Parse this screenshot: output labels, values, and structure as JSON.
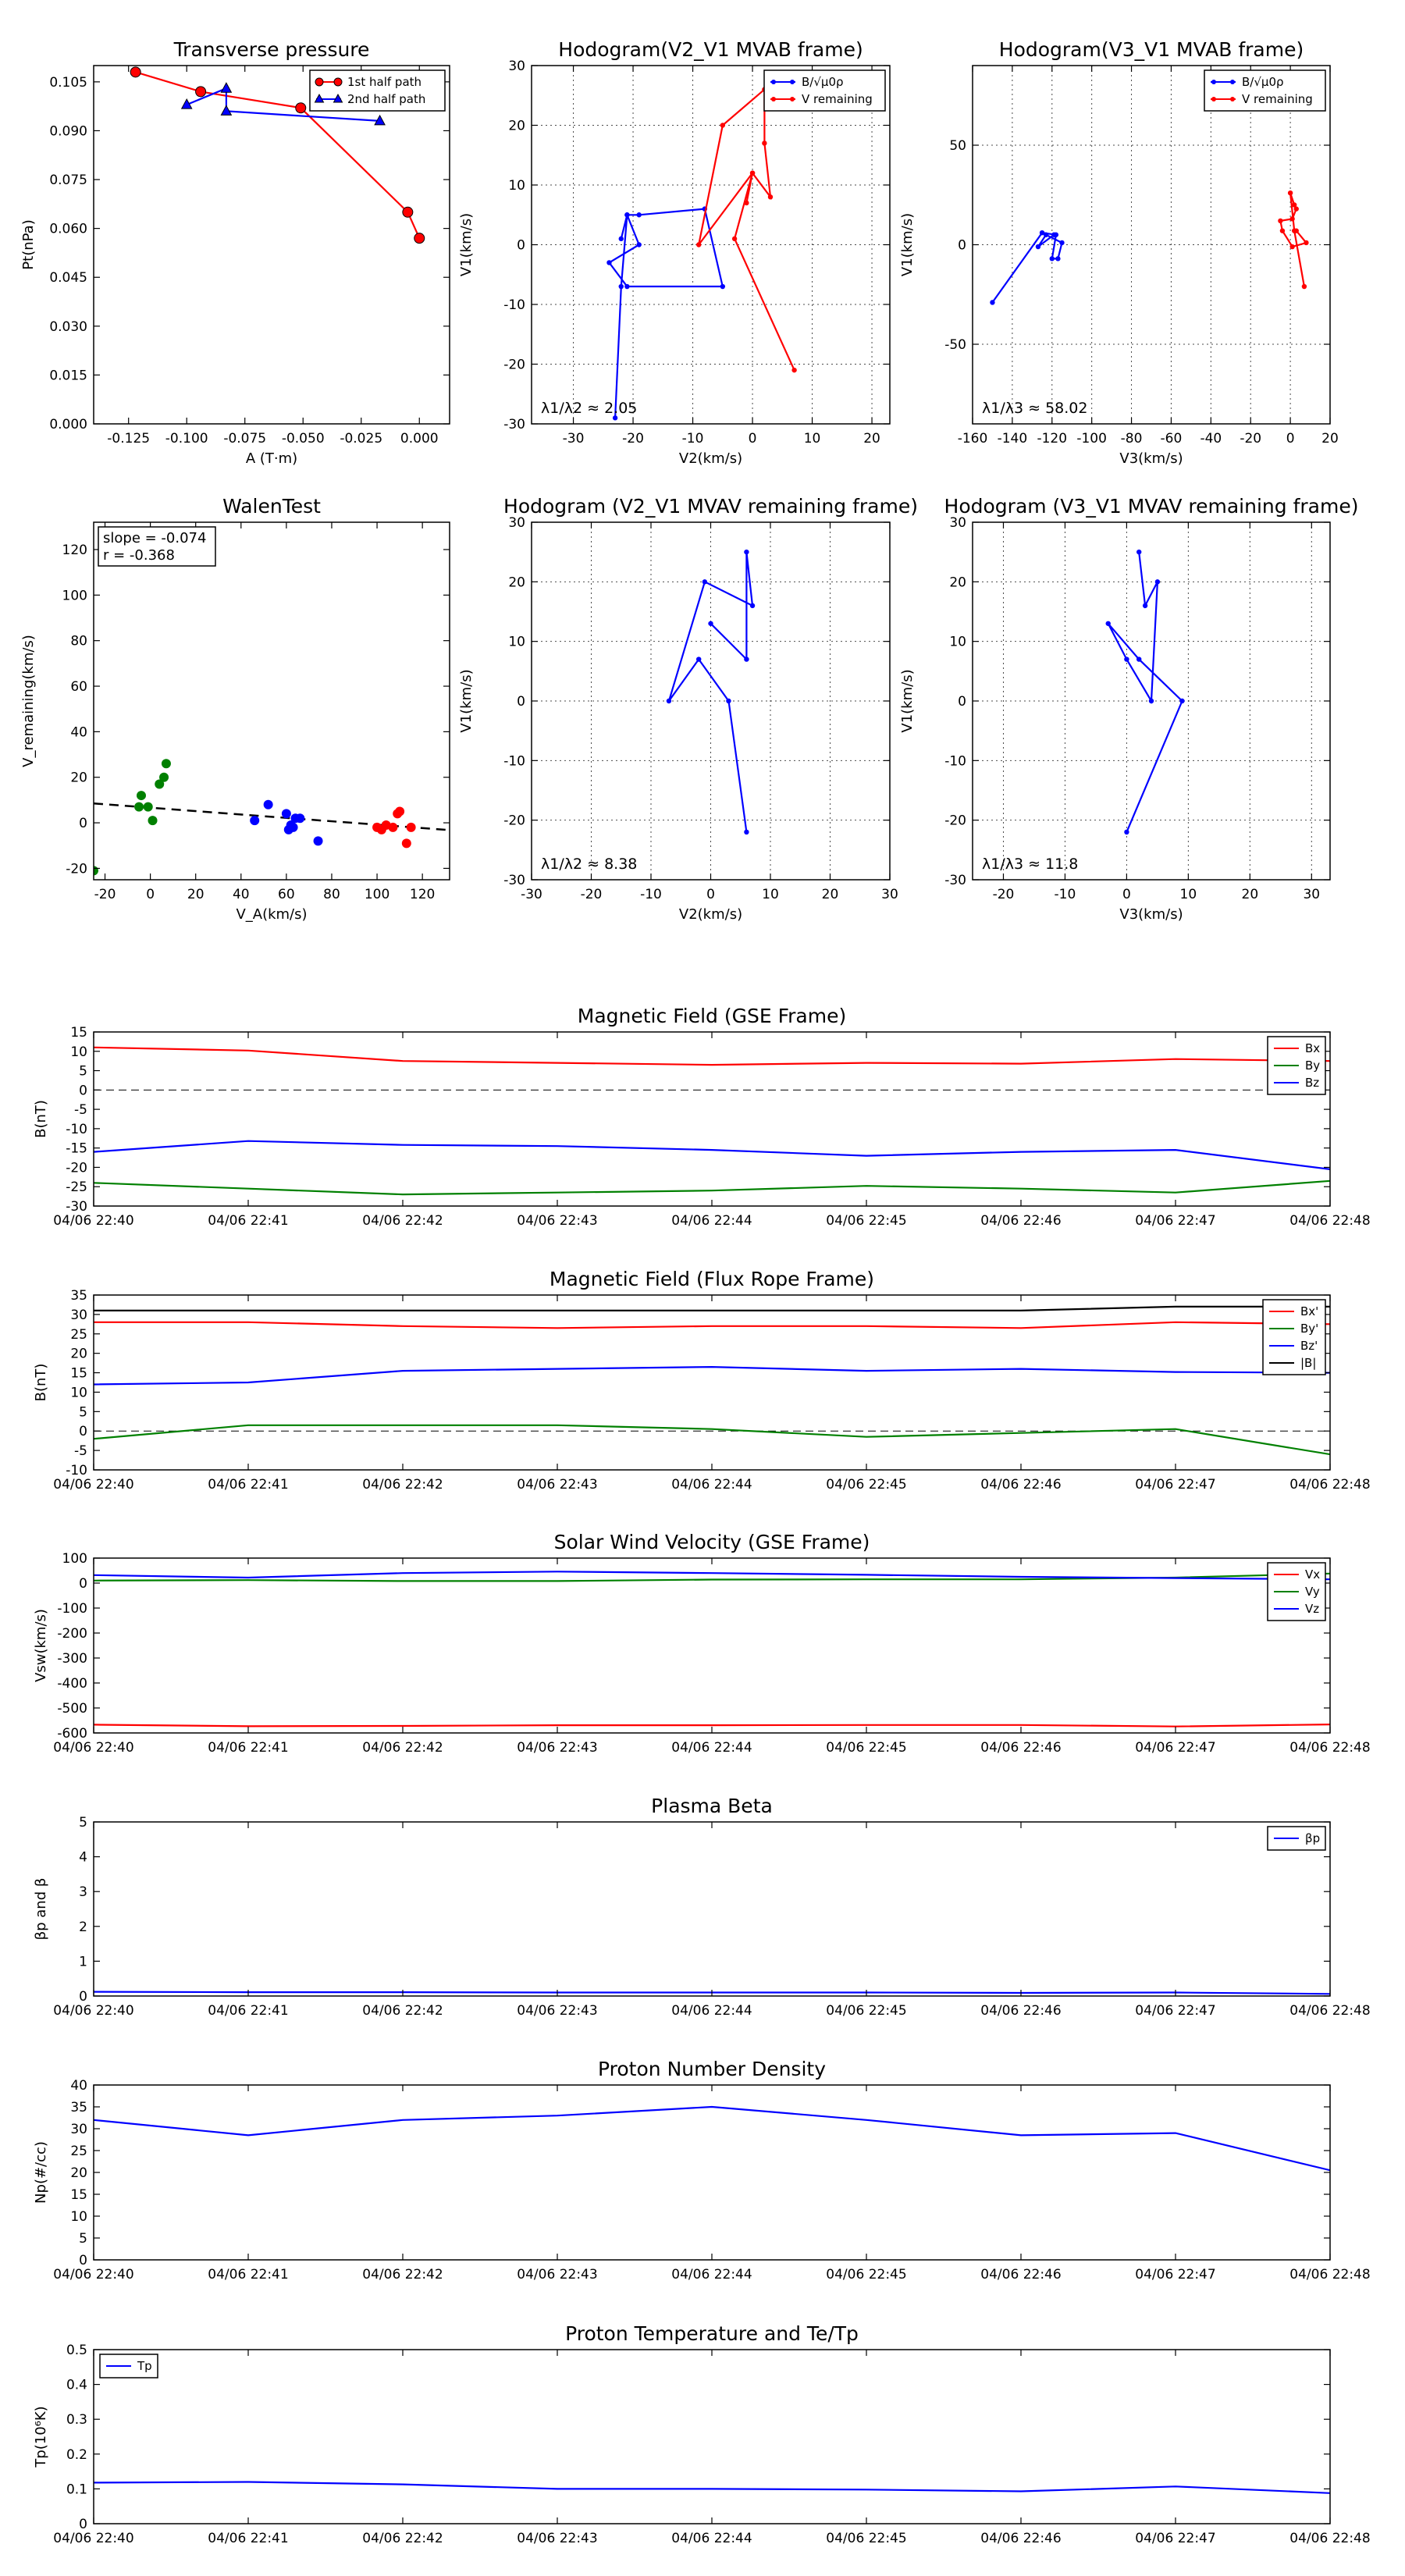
{
  "chart_data": [
    {
      "type": "line",
      "title": "Transverse pressure",
      "xlabel": "A (T·m)",
      "ylabel": "Pt(nPa)",
      "xlim": [
        -0.14,
        0.013
      ],
      "ylim": [
        0,
        0.11
      ],
      "xticks": [
        -0.125,
        -0.1,
        -0.075,
        -0.05,
        -0.025,
        0
      ],
      "xticklabels": [
        "-0.125",
        "-0.100",
        "-0.075",
        "-0.050",
        "-0.025",
        "0.000"
      ],
      "yticks": [
        0,
        0.015,
        0.03,
        0.045,
        0.06,
        0.075,
        0.09,
        0.105
      ],
      "yticklabels": [
        "0.000",
        "0.015",
        "0.030",
        "0.045",
        "0.060",
        "0.075",
        "0.090",
        "0.105"
      ],
      "grid": false,
      "legend": "top-right",
      "series": [
        {
          "name": "1st half path",
          "color": "#ff0000",
          "marker": "circle",
          "x": [
            -0.122,
            -0.094,
            -0.051,
            -0.005,
            0.0
          ],
          "y": [
            0.108,
            0.102,
            0.097,
            0.065,
            0.057
          ]
        },
        {
          "name": "2nd half path",
          "color": "#0000ff",
          "marker": "triangle",
          "x": [
            -0.1,
            -0.083,
            -0.083,
            -0.017
          ],
          "y": [
            0.098,
            0.103,
            0.096,
            0.093
          ]
        }
      ]
    },
    {
      "type": "line",
      "title": "Hodogram(V2_V1 MVAB frame)",
      "xlabel": "V2(km/s)",
      "ylabel": "V1(km/s)",
      "xlim": [
        -37,
        23
      ],
      "ylim": [
        -30,
        30
      ],
      "xticks": [
        -30,
        -20,
        -10,
        0,
        10,
        20
      ],
      "yticks": [
        -30,
        -20,
        -10,
        0,
        10,
        20,
        30
      ],
      "grid": true,
      "legend": "top-right",
      "annotation": "λ1/λ2 ≈ 2.05",
      "series": [
        {
          "name": "B/√μ0ρ",
          "color": "#0000ff",
          "marker": "dot",
          "x": [
            -23,
            -22,
            -21,
            -19,
            -8,
            -5,
            -21,
            -24,
            -19,
            -21,
            -22
          ],
          "y": [
            -29,
            -7,
            5,
            5,
            6,
            -7,
            -7,
            -3,
            0,
            5,
            1
          ]
        },
        {
          "name": "V remaining",
          "color": "#ff0000",
          "marker": "dot",
          "x": [
            7,
            -3,
            0,
            3,
            2,
            2,
            -5,
            -9,
            0,
            -1
          ],
          "y": [
            -21,
            1,
            12,
            8,
            17,
            26,
            20,
            0,
            12,
            7
          ]
        }
      ]
    },
    {
      "type": "line",
      "title": "Hodogram(V3_V1 MVAB frame)",
      "xlabel": "V3(km/s)",
      "ylabel": "V1(km/s)",
      "xlim": [
        -160,
        20
      ],
      "ylim": [
        -90,
        90
      ],
      "xticks": [
        -160,
        -140,
        -120,
        -100,
        -80,
        -60,
        -40,
        -20,
        0,
        20
      ],
      "yticks": [
        -50,
        0,
        50
      ],
      "grid": true,
      "legend": "top-right",
      "annotation": "λ1/λ3 ≈ 58.02",
      "series": [
        {
          "name": "B/√μ0ρ",
          "color": "#0000ff",
          "marker": "dot",
          "x": [
            -150,
            -125,
            -118,
            -120,
            -117,
            -115,
            -123,
            -127,
            -119
          ],
          "y": [
            -29,
            6,
            5,
            -7,
            -7,
            1,
            5,
            -1,
            5
          ]
        },
        {
          "name": "V remaining",
          "color": "#ff0000",
          "marker": "dot",
          "x": [
            7,
            2,
            0,
            2,
            3,
            1,
            -5,
            -4,
            1,
            8,
            3
          ],
          "y": [
            -21,
            7,
            26,
            20,
            18,
            13,
            12,
            7,
            -1,
            1,
            7
          ]
        }
      ]
    },
    {
      "type": "scatter",
      "title": "WalenTest",
      "xlabel": "V_A(km/s)",
      "ylabel": "V_remaining(km/s)",
      "xlim": [
        -25,
        132
      ],
      "ylim": [
        -25,
        132
      ],
      "xticks": [
        -20,
        0,
        20,
        40,
        60,
        80,
        100,
        120
      ],
      "yticks": [
        -20,
        0,
        20,
        40,
        60,
        80,
        100,
        120
      ],
      "grid": false,
      "annotation_lines": [
        "slope = -0.074",
        "r = -0.368"
      ],
      "series": [
        {
          "color": "#008000",
          "x": [
            -25,
            -5,
            -4,
            -1,
            1,
            4,
            6,
            7
          ],
          "y": [
            -21,
            7,
            12,
            7,
            1,
            17,
            20,
            26
          ]
        },
        {
          "color": "#0000ff",
          "x": [
            46,
            52,
            60,
            61,
            62,
            63,
            64,
            66,
            74
          ],
          "y": [
            1,
            8,
            4,
            -3,
            -1,
            -2,
            2,
            2,
            -8
          ]
        },
        {
          "color": "#ff0000",
          "x": [
            100,
            102,
            104,
            107,
            109,
            110,
            113,
            115
          ],
          "y": [
            -2,
            -3,
            -1,
            -2,
            4,
            5,
            -9,
            -2
          ]
        }
      ],
      "fit_line": {
        "x": [
          -25,
          132
        ],
        "y": [
          8.5,
          -3.2
        ]
      }
    },
    {
      "type": "line",
      "title": "Hodogram (V2_V1 MVAV remaining frame)",
      "xlabel": "V2(km/s)",
      "ylabel": "V1(km/s)",
      "xlim": [
        -30,
        30
      ],
      "ylim": [
        -30,
        30
      ],
      "xticks": [
        -30,
        -20,
        -10,
        0,
        10,
        20,
        30
      ],
      "yticks": [
        -30,
        -20,
        -10,
        0,
        10,
        20,
        30
      ],
      "grid": true,
      "annotation": "λ1/λ2 ≈ 8.38",
      "series": [
        {
          "color": "#0000ff",
          "marker": "dot",
          "x": [
            6,
            3,
            -2,
            -7,
            -1,
            7,
            6,
            6,
            0
          ],
          "y": [
            -22,
            0,
            7,
            0,
            20,
            16,
            25,
            7,
            13
          ]
        }
      ]
    },
    {
      "type": "line",
      "title": "Hodogram (V3_V1 MVAV remaining frame)",
      "xlabel": "V3(km/s)",
      "ylabel": "V1(km/s)",
      "xlim": [
        -25,
        33
      ],
      "ylim": [
        -30,
        30
      ],
      "xticks": [
        -20,
        -10,
        0,
        10,
        20,
        30
      ],
      "yticks": [
        -30,
        -20,
        -10,
        0,
        10,
        20,
        30
      ],
      "grid": true,
      "annotation": "λ1/λ3 ≈ 11.8",
      "series": [
        {
          "color": "#0000ff",
          "marker": "dot",
          "x": [
            0,
            9,
            2,
            -3,
            0,
            4,
            5,
            3,
            2
          ],
          "y": [
            -22,
            0,
            7,
            13,
            7,
            0,
            20,
            16,
            25
          ]
        }
      ]
    },
    {
      "type": "line",
      "title": "Magnetic Field (GSE Frame)",
      "ylabel": "B(nT)",
      "categories": [
        "04/06 22:40",
        "04/06 22:41",
        "04/06 22:42",
        "04/06 22:43",
        "04/06 22:44",
        "04/06 22:45",
        "04/06 22:46",
        "04/06 22:47",
        "04/06 22:48"
      ],
      "ylim": [
        -30,
        15
      ],
      "yticks": [
        -30,
        -25,
        -20,
        -15,
        -10,
        -5,
        0,
        5,
        10,
        15
      ],
      "zero_line": true,
      "legend": "top-right",
      "series": [
        {
          "name": "Bx",
          "color": "#ff0000",
          "values": [
            11,
            10.2,
            7.5,
            7,
            6.5,
            7,
            6.8,
            8,
            7.5
          ]
        },
        {
          "name": "By",
          "color": "#008000",
          "values": [
            -24,
            -25.5,
            -27,
            -26.5,
            -26,
            -24.8,
            -25.5,
            -26.5,
            -23.5
          ]
        },
        {
          "name": "Bz",
          "color": "#0000ff",
          "values": [
            -16,
            -13.2,
            -14.2,
            -14.5,
            -15.5,
            -17,
            -16,
            -15.5,
            -20.5
          ]
        }
      ]
    },
    {
      "type": "line",
      "title": "Magnetic Field (Flux Rope Frame)",
      "ylabel": "B(nT)",
      "categories": [
        "04/06 22:40",
        "04/06 22:41",
        "04/06 22:42",
        "04/06 22:43",
        "04/06 22:44",
        "04/06 22:45",
        "04/06 22:46",
        "04/06 22:47",
        "04/06 22:48"
      ],
      "ylim": [
        -10,
        35
      ],
      "yticks": [
        -10,
        -5,
        0,
        5,
        10,
        15,
        20,
        25,
        30,
        35
      ],
      "zero_line": true,
      "legend": "top-right",
      "series": [
        {
          "name": "Bx'",
          "color": "#ff0000",
          "values": [
            28,
            28,
            27,
            26.5,
            27,
            27,
            26.5,
            28,
            27.5
          ]
        },
        {
          "name": "By'",
          "color": "#008000",
          "values": [
            -2,
            1.5,
            1.5,
            1.5,
            0.5,
            -1.5,
            -0.5,
            0.5,
            -6
          ]
        },
        {
          "name": "Bz'",
          "color": "#0000ff",
          "values": [
            12,
            12.5,
            15.5,
            16,
            16.5,
            15.5,
            16,
            15.2,
            15
          ]
        },
        {
          "name": "|B|",
          "color": "#000000",
          "values": [
            31,
            31,
            31,
            31,
            31,
            31,
            31,
            32,
            32
          ]
        }
      ]
    },
    {
      "type": "line",
      "title": "Solar Wind Velocity (GSE Frame)",
      "ylabel": "Vsw(km/s)",
      "categories": [
        "04/06 22:40",
        "04/06 22:41",
        "04/06 22:42",
        "04/06 22:43",
        "04/06 22:44",
        "04/06 22:45",
        "04/06 22:46",
        "04/06 22:47",
        "04/06 22:48"
      ],
      "ylim": [
        -600,
        100
      ],
      "yticks": [
        -600,
        -500,
        -400,
        -300,
        -200,
        -100,
        0,
        100
      ],
      "legend": "top-right",
      "series": [
        {
          "name": "Vx",
          "color": "#ff0000",
          "values": [
            -567,
            -573,
            -572,
            -569,
            -569,
            -568,
            -568,
            -574,
            -566
          ]
        },
        {
          "name": "Vy",
          "color": "#008000",
          "values": [
            10,
            12,
            8,
            8,
            14,
            15,
            15,
            22,
            38
          ]
        },
        {
          "name": "Vz",
          "color": "#0000ff",
          "values": [
            32,
            22,
            40,
            46,
            40,
            33,
            25,
            20,
            15
          ]
        }
      ]
    },
    {
      "type": "line",
      "title": "Plasma Beta",
      "ylabel": "βp and β",
      "categories": [
        "04/06 22:40",
        "04/06 22:41",
        "04/06 22:42",
        "04/06 22:43",
        "04/06 22:44",
        "04/06 22:45",
        "04/06 22:46",
        "04/06 22:47",
        "04/06 22:48"
      ],
      "ylim": [
        0,
        5
      ],
      "yticks": [
        0,
        1,
        2,
        3,
        4,
        5
      ],
      "legend": "top-right",
      "series": [
        {
          "name": "βp",
          "color": "#0000ff",
          "values": [
            0.12,
            0.11,
            0.11,
            0.1,
            0.1,
            0.1,
            0.09,
            0.1,
            0.06
          ]
        }
      ]
    },
    {
      "type": "line",
      "title": "Proton Number Density",
      "ylabel": "Np(#/cc)",
      "categories": [
        "04/06 22:40",
        "04/06 22:41",
        "04/06 22:42",
        "04/06 22:43",
        "04/06 22:44",
        "04/06 22:45",
        "04/06 22:46",
        "04/06 22:47",
        "04/06 22:48"
      ],
      "ylim": [
        0,
        40
      ],
      "yticks": [
        0,
        5,
        10,
        15,
        20,
        25,
        30,
        35,
        40
      ],
      "series": [
        {
          "name": "Np",
          "color": "#0000ff",
          "values": [
            32,
            28.5,
            32,
            33,
            35,
            32,
            28.5,
            29,
            20.5
          ]
        }
      ]
    },
    {
      "type": "line",
      "title": "Proton Temperature and Te/Tp",
      "ylabel": "Tp(10⁶K)",
      "categories": [
        "04/06 22:40",
        "04/06 22:41",
        "04/06 22:42",
        "04/06 22:43",
        "04/06 22:44",
        "04/06 22:45",
        "04/06 22:46",
        "04/06 22:47",
        "04/06 22:48"
      ],
      "ylim": [
        0,
        0.5
      ],
      "yticks": [
        0,
        0.1,
        0.2,
        0.3,
        0.4,
        0.5
      ],
      "legend": "top-left",
      "series": [
        {
          "name": "Tp",
          "color": "#0000ff",
          "values": [
            0.118,
            0.12,
            0.113,
            0.1,
            0.1,
            0.098,
            0.093,
            0.107,
            0.088
          ]
        }
      ]
    }
  ]
}
